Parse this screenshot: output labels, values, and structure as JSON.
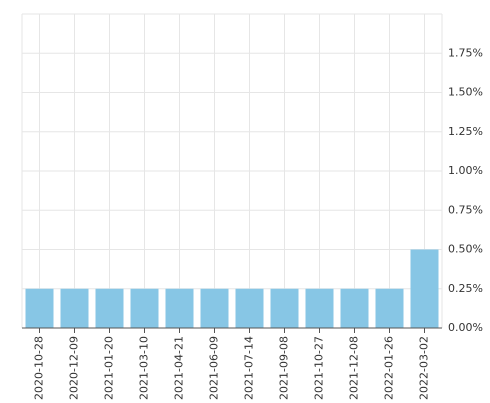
{
  "chart_data": {
    "type": "bar",
    "categories": [
      "2020-10-28",
      "2020-12-09",
      "2021-01-20",
      "2021-03-10",
      "2021-04-21",
      "2021-06-09",
      "2021-07-14",
      "2021-09-08",
      "2021-10-27",
      "2021-12-08",
      "2022-01-26",
      "2022-03-02"
    ],
    "values": [
      0.25,
      0.25,
      0.25,
      0.25,
      0.25,
      0.25,
      0.25,
      0.25,
      0.25,
      0.25,
      0.25,
      0.5
    ],
    "color": "#87c6e5",
    "ylim": [
      0,
      2.0
    ],
    "yticks": [
      {
        "value": 0,
        "label": "0.00%"
      },
      {
        "value": 0.25,
        "label": "0.25%"
      },
      {
        "value": 0.5,
        "label": "0.50%"
      },
      {
        "value": 0.75,
        "label": "0.75%"
      },
      {
        "value": 1.0,
        "label": "1.00%"
      },
      {
        "value": 1.25,
        "label": "1.25%"
      },
      {
        "value": 1.5,
        "label": "1.50%"
      },
      {
        "value": 1.75,
        "label": "1.75%"
      }
    ],
    "grid": true
  }
}
